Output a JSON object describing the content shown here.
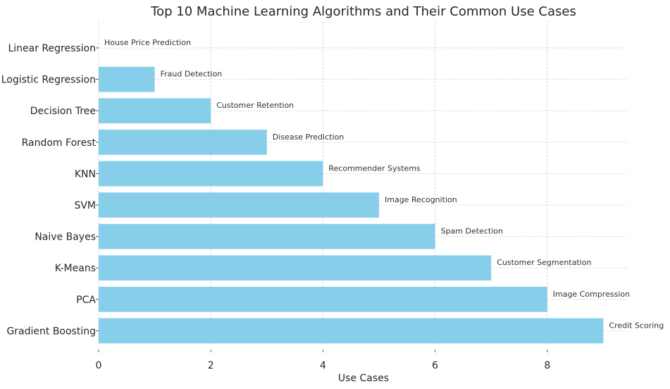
{
  "chart_data": {
    "type": "bar",
    "orientation": "horizontal",
    "title": "Top 10 Machine Learning Algorithms and Their Common Use Cases",
    "xlabel": "Use Cases",
    "ylabel": "",
    "xlim": [
      0,
      9.45
    ],
    "xticks": [
      0,
      2,
      4,
      6,
      8
    ],
    "grid": true,
    "bar_color": "#87CEEB",
    "categories": [
      "Linear Regression",
      "Logistic Regression",
      "Decision Tree",
      "Random Forest",
      "KNN",
      "SVM",
      "Naive Bayes",
      "K-Means",
      "PCA",
      "Gradient Boosting"
    ],
    "values": [
      0,
      1,
      2,
      3,
      4,
      5,
      6,
      7,
      8,
      9
    ],
    "annotations": [
      "House Price Prediction",
      "Fraud Detection",
      "Customer Retention",
      "Disease Prediction",
      "Recommender Systems",
      "Image Recognition",
      "Spam Detection",
      "Customer Segmentation",
      "Image Compression",
      "Credit Scoring"
    ]
  }
}
